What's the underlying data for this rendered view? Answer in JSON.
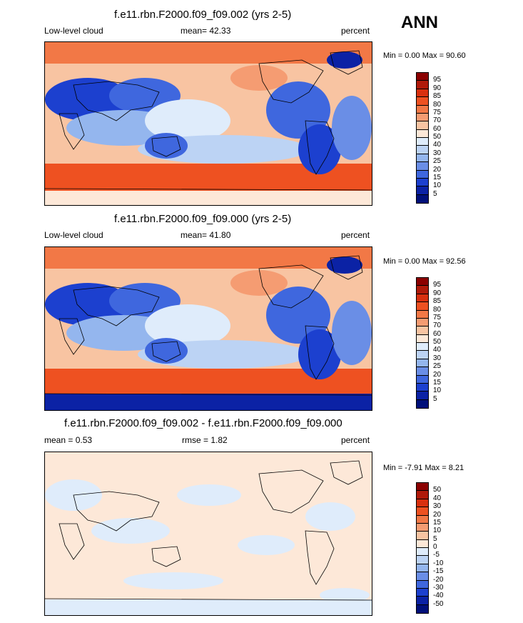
{
  "season": "ANN",
  "panels": [
    {
      "title": "f.e11.rbn.F2000.f09_f09.002 (yrs 2-5)",
      "left_label": "Low-level cloud",
      "center_label": "mean=  42.33",
      "right_label": "percent",
      "minmax": "Min =   0.00 Max =  90.60",
      "kind": "abs"
    },
    {
      "title": "f.e11.rbn.F2000.f09_f09.000 (yrs 2-5)",
      "left_label": "Low-level cloud",
      "center_label": "mean=  41.80",
      "right_label": "percent",
      "minmax": "Min =   0.00 Max =  92.56",
      "kind": "abs"
    },
    {
      "title": "f.e11.rbn.F2000.f09_f09.002 - f.e11.rbn.F2000.f09_f09.000",
      "left_label": "mean =   0.53",
      "center_label": "rmse =   1.82",
      "right_label": "percent",
      "minmax": "Min =  -7.91 Max =   8.21",
      "kind": "diff"
    }
  ],
  "colorbar_abs": {
    "labels": [
      "95",
      "90",
      "85",
      "80",
      "75",
      "70",
      "60",
      "50",
      "40",
      "30",
      "25",
      "20",
      "15",
      "10",
      "5"
    ],
    "colors": [
      "#8b0000",
      "#b01a0a",
      "#d9300f",
      "#ee5121",
      "#f27846",
      "#f59c72",
      "#f8c4a2",
      "#fde8d8",
      "#dfecfb",
      "#bcd3f4",
      "#94b6ee",
      "#6a8ee6",
      "#3f67de",
      "#1c40cf",
      "#0b22a5",
      "#00107a"
    ]
  },
  "colorbar_diff": {
    "labels": [
      "50",
      "40",
      "30",
      "20",
      "15",
      "10",
      "5",
      "0",
      "-5",
      "-10",
      "-15",
      "-20",
      "-30",
      "-40",
      "-50"
    ],
    "colors": [
      "#8b0000",
      "#b01a0a",
      "#d9300f",
      "#ee5121",
      "#f27846",
      "#f59c72",
      "#f8c4a2",
      "#fde8d8",
      "#dfecfb",
      "#bcd3f4",
      "#94b6ee",
      "#6a8ee6",
      "#3f67de",
      "#1c40cf",
      "#0b22a5",
      "#00107a"
    ]
  }
}
